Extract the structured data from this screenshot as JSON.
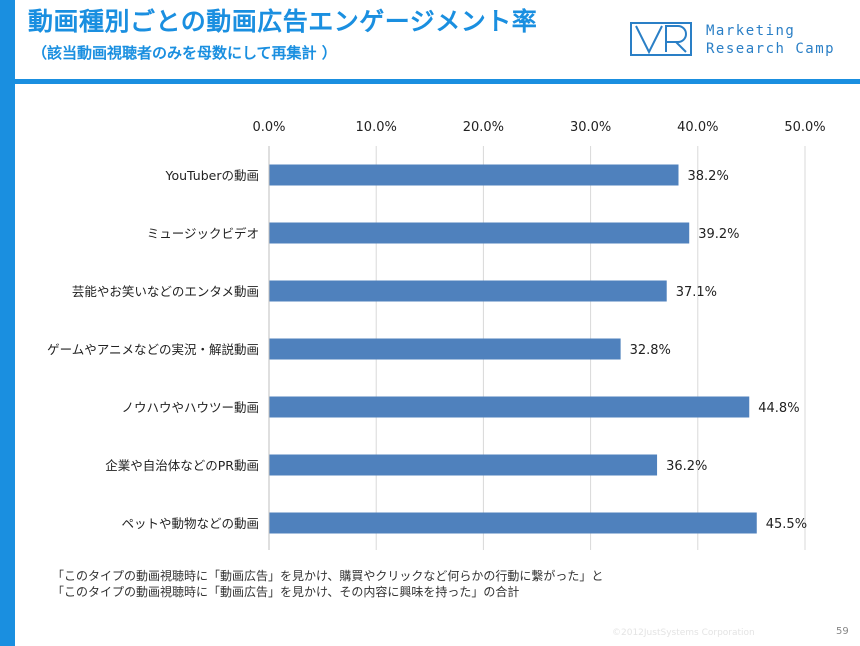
{
  "header": {
    "title": "動画種別ごとの動画広告エンゲージメント率",
    "subtitle": "（該当動画視聴者のみを母数にして再集計 ）",
    "logo_line1": "Marketing",
    "logo_line2": "Research Camp"
  },
  "colors": {
    "accent": "#1a8fe0",
    "bar": "#4f81bd"
  },
  "chart_data": {
    "type": "bar",
    "orientation": "horizontal",
    "categories": [
      "YouTuberの動画",
      "ミュージックビデオ",
      "芸能やお笑いなどのエンタメ動画",
      "ゲームやアニメなどの実況・解説動画",
      "ノウハウやハウツー動画",
      "企業や自治体などのPR動画",
      "ペットや動物などの動画"
    ],
    "values": [
      38.2,
      39.2,
      37.1,
      32.8,
      44.8,
      36.2,
      45.5
    ],
    "value_labels": [
      "38.2%",
      "39.2%",
      "37.1%",
      "32.8%",
      "44.8%",
      "36.2%",
      "45.5%"
    ],
    "xlim": [
      0,
      50
    ],
    "ticks": [
      0,
      10,
      20,
      30,
      40,
      50
    ],
    "tick_labels": [
      "0.0%",
      "10.0%",
      "20.0%",
      "30.0%",
      "40.0%",
      "50.0%"
    ],
    "axis_position": "top",
    "grid": true
  },
  "footnote": {
    "line1": "「このタイプの動画視聴時に「動画広告」を見かけ、購買やクリックなど何らかの行動に繋がった」と",
    "line2": "「このタイプの動画視聴時に「動画広告」を見かけ、その内容に興味を持った」の合計"
  },
  "copyright": "©2012JustSystems Corporation",
  "page_number": "59"
}
